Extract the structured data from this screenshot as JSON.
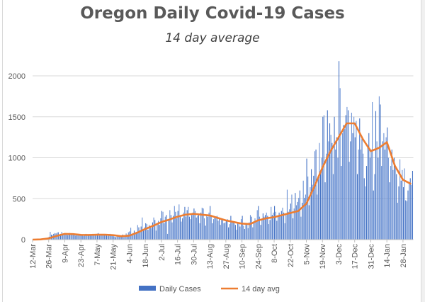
{
  "chart_data": {
    "type": "bar+line",
    "title": "Oregon Daily Covid-19 Cases",
    "subtitle": "14 day average",
    "start_date": "2020-03-12",
    "ylim": [
      0,
      2000
    ],
    "yticks": [
      0,
      500,
      1000,
      1500,
      2000
    ],
    "grid": true,
    "legend_position": "bottom",
    "colors": {
      "bars": "#4472C4",
      "line": "#ED7D31"
    },
    "xtick_labels": [
      "12-Mar",
      "26-Mar",
      "9-Apr",
      "23-Apr",
      "7-May",
      "21-May",
      "4-Jun",
      "18-Jun",
      "2-Jul",
      "16-Jul",
      "30-Jul",
      "13-Aug",
      "27-Aug",
      "10-Sep",
      "24-Sep",
      "8-Oct",
      "22-Oct",
      "5-Nov",
      "19-Nov",
      "3-Dec",
      "17-Dec",
      "31-Dec",
      "14-Jan",
      "28-Jan"
    ],
    "series": [
      {
        "name": "Daily Cases",
        "type": "bar",
        "values": [
          1,
          0,
          2,
          3,
          5,
          4,
          8,
          10,
          12,
          8,
          15,
          20,
          18,
          25,
          35,
          95,
          60,
          55,
          70,
          80,
          75,
          85,
          90,
          60,
          70,
          95,
          65,
          72,
          68,
          75,
          55,
          60,
          80,
          70,
          62,
          58,
          65,
          50,
          60,
          72,
          55,
          48,
          52,
          60,
          45,
          55,
          70,
          50,
          58,
          62,
          55,
          48,
          70,
          65,
          58,
          60,
          72,
          80,
          50,
          60,
          68,
          55,
          62,
          60,
          65,
          45,
          58,
          70,
          50,
          55,
          42,
          38,
          30,
          45,
          55,
          35,
          40,
          48,
          62,
          30,
          50,
          75,
          60,
          90,
          100,
          145,
          60,
          80,
          110,
          90,
          95,
          178,
          150,
          100,
          160,
          270,
          130,
          150,
          200,
          190,
          120,
          180,
          160,
          140,
          210,
          270,
          240,
          110,
          200,
          230,
          180,
          260,
          350,
          340,
          200,
          280,
          300,
          70,
          230,
          360,
          300,
          210,
          290,
          410,
          340,
          260,
          350,
          430,
          290,
          220,
          260,
          330,
          400,
          280,
          360,
          400,
          280,
          250,
          300,
          330,
          380,
          350,
          270,
          290,
          300,
          200,
          330,
          390,
          380,
          260,
          170,
          300,
          280,
          330,
          410,
          300,
          200,
          250,
          280,
          260,
          290,
          230,
          260,
          180,
          240,
          250,
          200,
          210,
          230,
          250,
          150,
          190,
          290,
          220,
          210,
          200,
          180,
          120,
          200,
          210,
          160,
          250,
          290,
          170,
          130,
          180,
          200,
          140,
          210,
          300,
          280,
          150,
          200,
          260,
          230,
          360,
          410,
          280,
          180,
          250,
          320,
          280,
          300,
          330,
          290,
          190,
          240,
          400,
          300,
          330,
          410,
          340,
          230,
          280,
          330,
          290,
          350,
          390,
          330,
          200,
          300,
          610,
          340,
          370,
          440,
          550,
          260,
          380,
          570,
          420,
          460,
          510,
          600,
          280,
          450,
          720,
          510,
          550,
          990,
          770,
          420,
          640,
          860,
          670,
          780,
          1080,
          1100,
          550,
          780,
          1180,
          830,
          1000,
          1500,
          1520,
          700,
          1050,
          1580,
          1200,
          1420,
          1280,
          1180,
          800,
          1500,
          1100,
          1250,
          1000,
          2180,
          1850,
          900,
          1300,
          1400,
          1350,
          1520,
          1620,
          1580,
          950,
          1200,
          1550,
          1300,
          1500,
          1250,
          1450,
          800,
          1100,
          1480,
          1100,
          1250,
          1050,
          750,
          650,
          900,
          1150,
          1300,
          1000,
          1100,
          1680,
          600,
          800,
          1570,
          1200,
          1000,
          1750,
          1650,
          900,
          1200,
          1300,
          1100,
          1250,
          1370,
          1000,
          700,
          900,
          1100,
          850,
          1000,
          880,
          800,
          450,
          650,
          980,
          720,
          850,
          640,
          870,
          480,
          470,
          600,
          700,
          750,
          670,
          840
        ]
      },
      {
        "name": "14 day avg",
        "type": "line",
        "sample_every_days": 7,
        "values": [
          0,
          3,
          15,
          45,
          70,
          68,
          58,
          57,
          60,
          60,
          55,
          42,
          48,
          85,
          130,
          170,
          215,
          245,
          280,
          305,
          315,
          305,
          295,
          265,
          235,
          215,
          195,
          190,
          235,
          260,
          275,
          300,
          325,
          350,
          440,
          650,
          880,
          1080,
          1250,
          1420,
          1420,
          1230,
          1080,
          1120,
          1190,
          900,
          730,
          680
        ]
      }
    ]
  }
}
